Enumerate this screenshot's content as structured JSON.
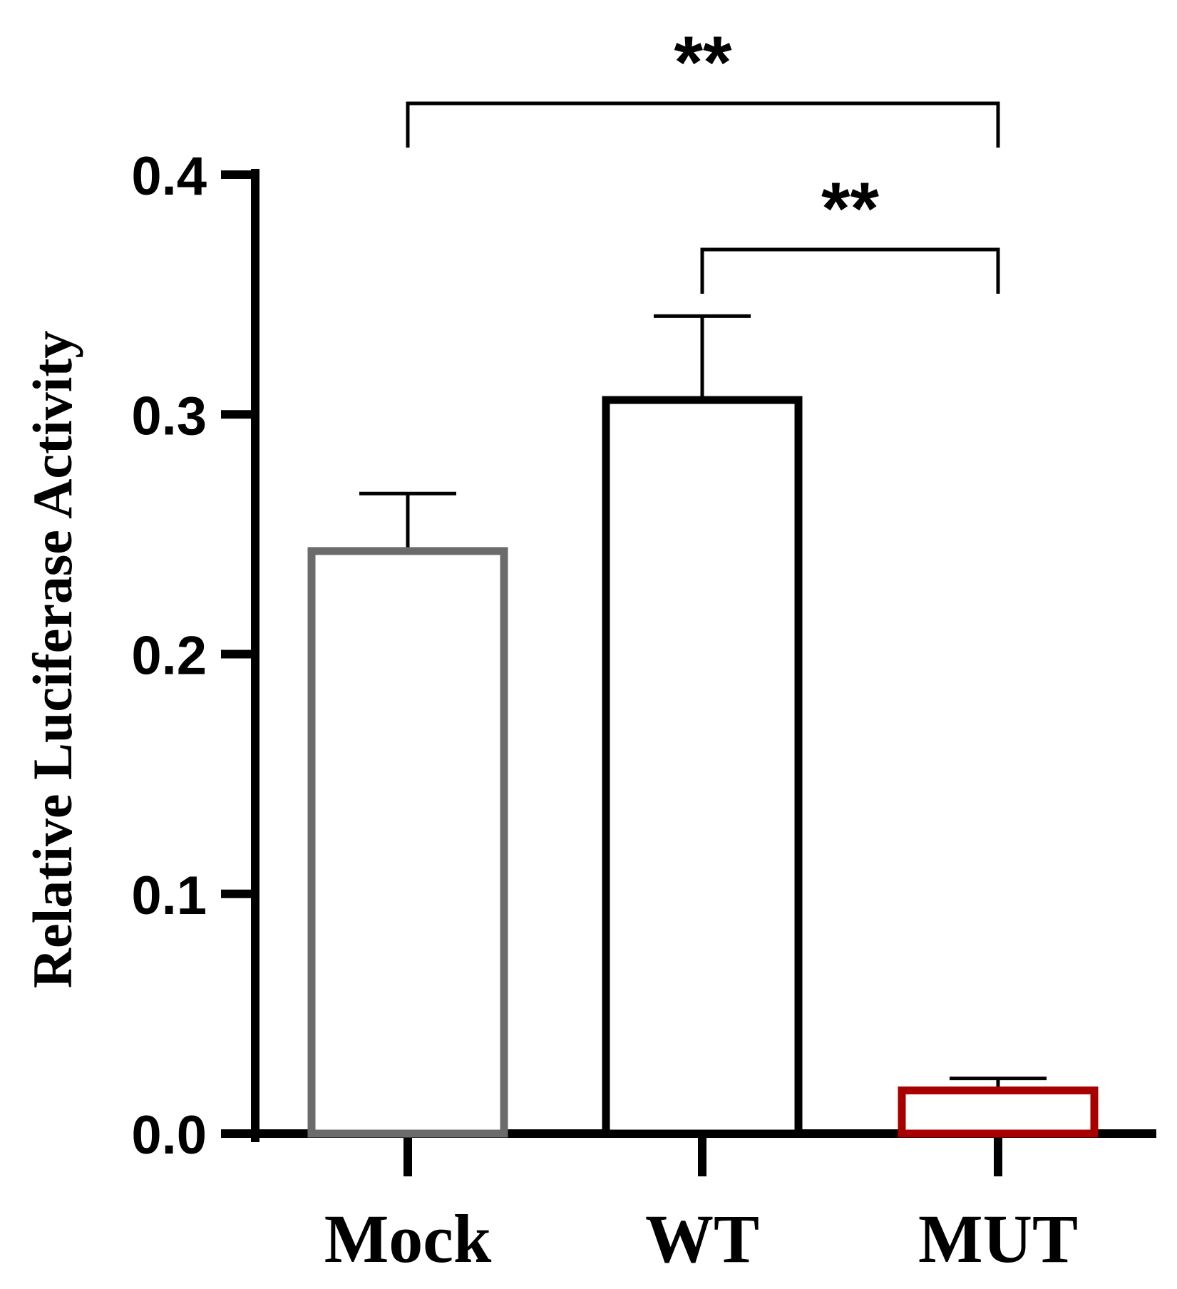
{
  "chart_data": {
    "type": "bar",
    "categories": [
      "Mock",
      "WT",
      "MUT"
    ],
    "values": [
      0.243,
      0.306,
      0.018
    ],
    "errors": [
      0.024,
      0.035,
      0.005
    ],
    "bar_colors": [
      "#6b6b6b",
      "#000000",
      "#a80000"
    ],
    "title": "",
    "xlabel": "",
    "ylabel": "Relative Luciferase Activity",
    "ylim": [
      0,
      0.4
    ],
    "yticks": [
      0.0,
      0.1,
      0.2,
      0.3,
      0.4
    ],
    "ytick_labels": [
      "0.0",
      "0.1",
      "0.2",
      "0.3",
      "0.4"
    ],
    "grid": false,
    "significance": [
      {
        "from": "Mock",
        "to": "MUT",
        "label": "**"
      },
      {
        "from": "WT",
        "to": "MUT",
        "label": "**"
      }
    ]
  }
}
